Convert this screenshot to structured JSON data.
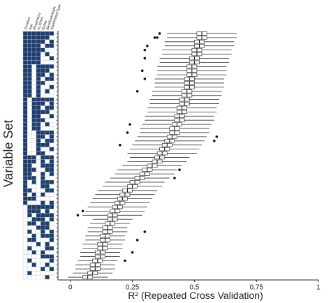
{
  "chart_data": {
    "type": "boxplot",
    "y_label": "Variable Set",
    "x_label": "R² (Repeated Cross Validation)",
    "xlim": [
      -0.05,
      1
    ],
    "xticks": [
      0,
      0.25,
      0.5,
      0.75,
      1
    ],
    "fill_color": "#1b3d6f",
    "variables": [
      "Duration",
      "Age",
      "Respiratory",
      "ALSFRS",
      "Bulbar",
      "BaselineWeight",
      "SiteOfOnsetType"
    ],
    "matrix": [
      [
        1,
        1,
        1,
        1,
        1,
        1,
        1
      ],
      [
        1,
        1,
        1,
        1,
        1,
        1,
        0
      ],
      [
        1,
        1,
        1,
        1,
        1,
        0,
        1
      ],
      [
        1,
        1,
        1,
        1,
        0,
        1,
        1
      ],
      [
        1,
        1,
        1,
        1,
        1,
        0,
        0
      ],
      [
        1,
        1,
        1,
        1,
        0,
        1,
        0
      ],
      [
        1,
        1,
        1,
        1,
        0,
        0,
        1
      ],
      [
        1,
        1,
        1,
        1,
        0,
        0,
        0
      ],
      [
        1,
        1,
        0,
        1,
        1,
        1,
        1
      ],
      [
        1,
        1,
        0,
        1,
        1,
        1,
        0
      ],
      [
        1,
        1,
        0,
        1,
        1,
        0,
        1
      ],
      [
        1,
        1,
        0,
        1,
        0,
        1,
        1
      ],
      [
        1,
        1,
        0,
        1,
        1,
        0,
        0
      ],
      [
        1,
        1,
        0,
        1,
        0,
        0,
        1
      ],
      [
        1,
        1,
        0,
        1,
        0,
        1,
        0
      ],
      [
        1,
        1,
        0,
        1,
        0,
        0,
        0
      ],
      [
        1,
        0,
        1,
        1,
        1,
        1,
        1
      ],
      [
        1,
        0,
        1,
        1,
        1,
        0,
        1
      ],
      [
        1,
        0,
        1,
        1,
        0,
        1,
        1
      ],
      [
        1,
        0,
        1,
        1,
        1,
        1,
        0
      ],
      [
        1,
        0,
        1,
        1,
        0,
        0,
        1
      ],
      [
        1,
        0,
        1,
        1,
        1,
        0,
        0
      ],
      [
        1,
        0,
        1,
        1,
        0,
        1,
        0
      ],
      [
        1,
        0,
        1,
        1,
        0,
        0,
        0
      ],
      [
        1,
        0,
        0,
        1,
        1,
        1,
        1
      ],
      [
        1,
        0,
        0,
        1,
        1,
        0,
        1
      ],
      [
        1,
        0,
        0,
        1,
        0,
        1,
        1
      ],
      [
        1,
        0,
        0,
        1,
        1,
        1,
        0
      ],
      [
        1,
        0,
        0,
        1,
        0,
        0,
        1
      ],
      [
        1,
        0,
        0,
        1,
        1,
        0,
        0
      ],
      [
        1,
        1,
        1,
        0,
        1,
        1,
        1
      ],
      [
        1,
        1,
        1,
        0,
        1,
        0,
        1
      ],
      [
        1,
        1,
        0,
        0,
        1,
        1,
        1
      ],
      [
        1,
        1,
        1,
        0,
        0,
        1,
        1
      ],
      [
        1,
        1,
        0,
        0,
        1,
        0,
        1
      ],
      [
        1,
        1,
        1,
        0,
        1,
        0,
        0
      ],
      [
        1,
        0,
        1,
        0,
        1,
        1,
        1
      ],
      [
        1,
        0,
        0,
        0,
        1,
        1,
        0
      ],
      [
        1,
        1,
        0,
        0,
        0,
        1,
        1
      ],
      [
        1,
        0,
        1,
        0,
        1,
        0,
        0
      ],
      [
        1,
        1,
        1,
        0,
        0,
        0,
        0
      ],
      [
        1,
        0,
        0,
        0,
        1,
        0,
        1
      ],
      [
        0,
        1,
        1,
        1,
        1,
        1,
        1
      ],
      [
        0,
        1,
        1,
        1,
        0,
        1,
        0
      ],
      [
        0,
        1,
        0,
        1,
        1,
        1,
        1
      ],
      [
        0,
        0,
        1,
        1,
        1,
        0,
        1
      ],
      [
        0,
        1,
        1,
        0,
        1,
        1,
        0
      ],
      [
        0,
        0,
        0,
        1,
        1,
        1,
        0
      ],
      [
        0,
        1,
        0,
        0,
        1,
        0,
        1
      ],
      [
        0,
        0,
        1,
        0,
        1,
        1,
        1
      ],
      [
        0,
        1,
        1,
        0,
        0,
        0,
        1
      ],
      [
        0,
        0,
        0,
        1,
        0,
        1,
        0
      ],
      [
        0,
        1,
        0,
        0,
        0,
        1,
        1
      ],
      [
        0,
        0,
        1,
        0,
        1,
        0,
        0
      ],
      [
        0,
        0,
        0,
        0,
        1,
        1,
        1
      ],
      [
        0,
        1,
        0,
        0,
        0,
        0,
        1
      ],
      [
        0,
        0,
        1,
        0,
        0,
        1,
        0
      ],
      [
        0,
        0,
        0,
        0,
        1,
        0,
        1
      ],
      [
        0,
        1,
        0,
        0,
        0,
        0,
        0
      ],
      [
        0,
        0,
        0,
        0,
        0,
        1,
        0
      ]
    ],
    "whisker_low": [
      0.39,
      0.39,
      0.38,
      0.38,
      0.37,
      0.37,
      0.36,
      0.36,
      0.35,
      0.35,
      0.35,
      0.34,
      0.34,
      0.34,
      0.33,
      0.33,
      0.32,
      0.32,
      0.31,
      0.31,
      0.3,
      0.3,
      0.29,
      0.28,
      0.28,
      0.27,
      0.26,
      0.25,
      0.24,
      0.23,
      0.24,
      0.23,
      0.21,
      0.19,
      0.18,
      0.16,
      0.14,
      0.13,
      0.11,
      0.1,
      0.09,
      0.08,
      0.07,
      0.06,
      0.05,
      0.09,
      0.08,
      0.07,
      0.07,
      0.06,
      0.06,
      0.05,
      0.05,
      0.04,
      0.04,
      0.03,
      0.02,
      0.02,
      0.01,
      -0.01
    ],
    "q1": [
      0.51,
      0.51,
      0.5,
      0.5,
      0.49,
      0.49,
      0.48,
      0.48,
      0.47,
      0.47,
      0.47,
      0.46,
      0.46,
      0.46,
      0.45,
      0.45,
      0.44,
      0.44,
      0.43,
      0.43,
      0.42,
      0.42,
      0.41,
      0.4,
      0.4,
      0.39,
      0.38,
      0.37,
      0.36,
      0.35,
      0.34,
      0.33,
      0.31,
      0.29,
      0.28,
      0.26,
      0.24,
      0.23,
      0.21,
      0.2,
      0.19,
      0.18,
      0.17,
      0.16,
      0.15,
      0.15,
      0.14,
      0.13,
      0.13,
      0.12,
      0.12,
      0.11,
      0.11,
      0.1,
      0.1,
      0.09,
      0.08,
      0.08,
      0.07,
      0.05
    ],
    "median": [
      0.53,
      0.53,
      0.52,
      0.52,
      0.51,
      0.51,
      0.5,
      0.5,
      0.49,
      0.49,
      0.49,
      0.48,
      0.48,
      0.48,
      0.47,
      0.47,
      0.46,
      0.46,
      0.45,
      0.45,
      0.44,
      0.44,
      0.43,
      0.42,
      0.42,
      0.41,
      0.4,
      0.39,
      0.38,
      0.37,
      0.36,
      0.35,
      0.33,
      0.31,
      0.3,
      0.28,
      0.26,
      0.25,
      0.23,
      0.22,
      0.21,
      0.2,
      0.19,
      0.18,
      0.17,
      0.17,
      0.16,
      0.15,
      0.15,
      0.14,
      0.14,
      0.13,
      0.13,
      0.12,
      0.12,
      0.11,
      0.1,
      0.1,
      0.09,
      0.07
    ],
    "q3": [
      0.55,
      0.55,
      0.54,
      0.54,
      0.53,
      0.53,
      0.52,
      0.52,
      0.51,
      0.51,
      0.51,
      0.5,
      0.5,
      0.5,
      0.49,
      0.49,
      0.48,
      0.48,
      0.47,
      0.47,
      0.46,
      0.46,
      0.45,
      0.44,
      0.44,
      0.43,
      0.42,
      0.41,
      0.4,
      0.39,
      0.38,
      0.37,
      0.35,
      0.33,
      0.32,
      0.3,
      0.28,
      0.27,
      0.25,
      0.24,
      0.23,
      0.22,
      0.21,
      0.2,
      0.19,
      0.19,
      0.18,
      0.17,
      0.17,
      0.16,
      0.16,
      0.15,
      0.15,
      0.14,
      0.14,
      0.13,
      0.12,
      0.12,
      0.11,
      0.09
    ],
    "whisker_high": [
      0.67,
      0.67,
      0.66,
      0.66,
      0.65,
      0.65,
      0.64,
      0.64,
      0.63,
      0.63,
      0.63,
      0.62,
      0.62,
      0.62,
      0.61,
      0.61,
      0.6,
      0.6,
      0.59,
      0.59,
      0.58,
      0.58,
      0.57,
      0.56,
      0.56,
      0.55,
      0.54,
      0.53,
      0.52,
      0.51,
      0.48,
      0.47,
      0.45,
      0.43,
      0.42,
      0.4,
      0.38,
      0.37,
      0.35,
      0.34,
      0.33,
      0.32,
      0.31,
      0.3,
      0.29,
      0.25,
      0.24,
      0.23,
      0.23,
      0.22,
      0.22,
      0.21,
      0.21,
      0.2,
      0.2,
      0.19,
      0.18,
      0.18,
      0.17,
      0.15
    ],
    "outliers": {
      "rows": [
        0,
        1,
        1,
        3,
        4,
        6,
        9,
        11,
        14,
        22,
        24,
        27,
        25,
        26,
        33,
        35,
        43,
        44,
        48,
        50,
        53,
        55
      ],
      "values": [
        0.36,
        0.34,
        0.35,
        0.31,
        0.3,
        0.3,
        0.29,
        0.3,
        0.27,
        0.24,
        0.23,
        0.2,
        0.59,
        0.58,
        0.44,
        0.42,
        0.05,
        0.03,
        0.3,
        0.27,
        0.25,
        0.22
      ]
    }
  }
}
